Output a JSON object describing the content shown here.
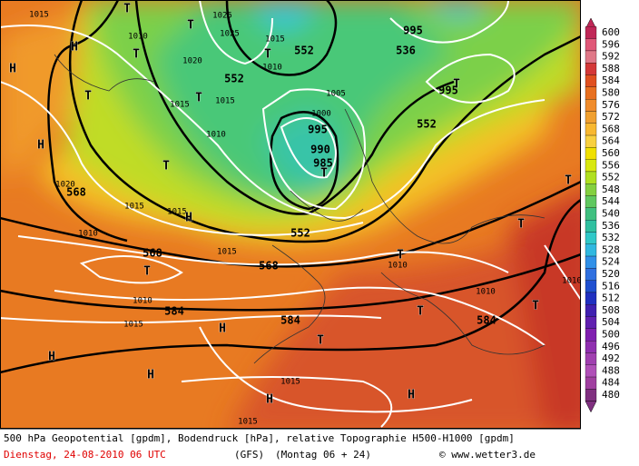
{
  "map": {
    "labels": [
      "1015",
      "T",
      "1010",
      "T",
      "H",
      "H",
      "T",
      "T",
      "1025",
      "1025",
      "1020",
      "552",
      "T",
      "1015",
      "1015",
      "1015",
      "T",
      "552",
      "1010",
      "995",
      "536",
      "T",
      "995",
      "1005",
      "1000",
      "995",
      "552",
      "1010",
      "990",
      "985",
      "T",
      "T",
      "H",
      "1020",
      "568",
      "1015",
      "1015",
      "H",
      "552",
      "1010",
      "568",
      "T",
      "1015",
      "568",
      "T",
      "1010",
      "1010",
      "584",
      "1015",
      "H",
      "584",
      "T",
      "1010",
      "584",
      "T",
      "T",
      "T",
      "1010",
      "H",
      "T",
      "H",
      "1015",
      "H",
      "H",
      "1015"
    ],
    "legend_levels": [
      600,
      596,
      592,
      588,
      584,
      580,
      576,
      572,
      568,
      564,
      560,
      556,
      552,
      548,
      544,
      540,
      536,
      532,
      528,
      524,
      520,
      516,
      512,
      508,
      504,
      500,
      496,
      492,
      488,
      484,
      480
    ]
  },
  "footer": {
    "description": "500 hPa Geopotential [gpdm], Bodendruck [hPa], relative Topographie H500-H1000 [gpdm]",
    "date": "Dienstag, 24-08-2010  06 UTC",
    "model": "(GFS)",
    "run": "(Montag 06 + 24)",
    "credit": "© www.wetter3.de"
  }
}
